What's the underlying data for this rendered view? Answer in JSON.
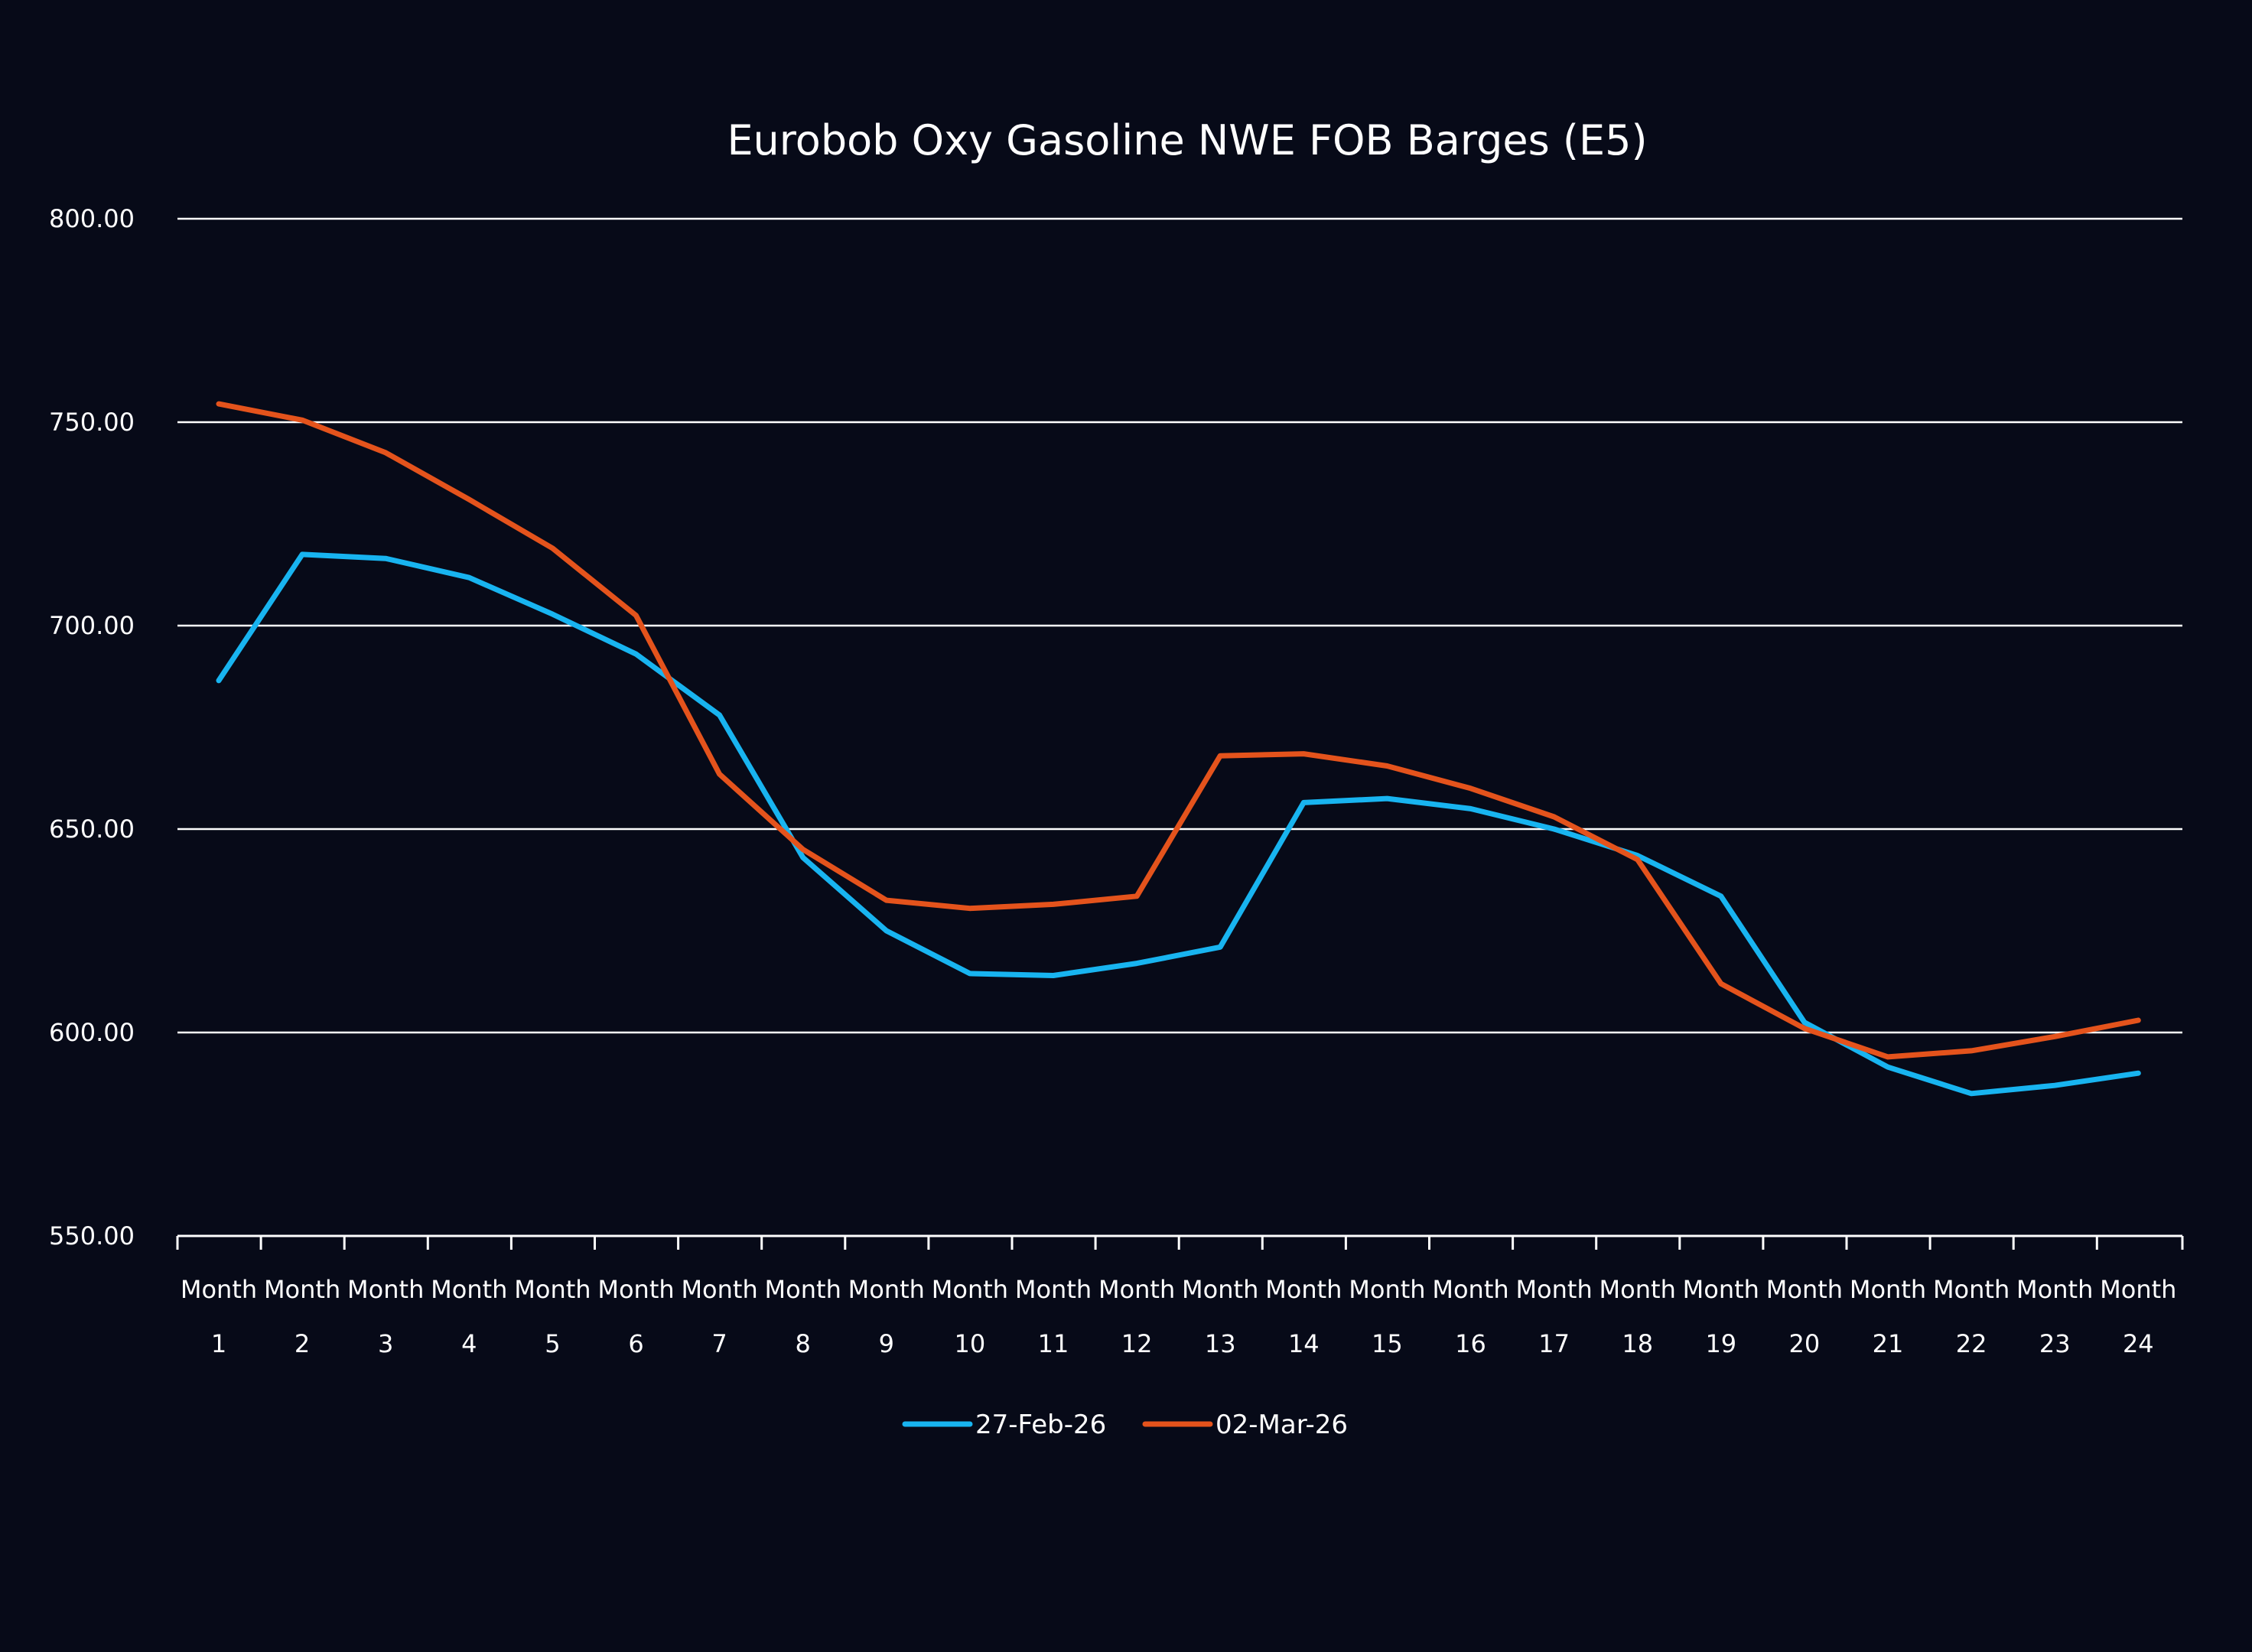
{
  "background": "#070a18",
  "chart_data": {
    "type": "line",
    "title": "Eurobob Oxy Gasoline NWE FOB Barges (E5)",
    "xlabel": "",
    "ylabel": "",
    "ylim": [
      550,
      800
    ],
    "yticks": [
      "800.00",
      "750.00",
      "700.00",
      "650.00",
      "600.00",
      "550.00"
    ],
    "ytick_values": [
      800,
      750,
      700,
      650,
      600,
      550
    ],
    "grid": true,
    "legend_position": "bottom-center",
    "categories": [
      {
        "line1": "Month",
        "line2": "1"
      },
      {
        "line1": "Month",
        "line2": "2"
      },
      {
        "line1": "Month",
        "line2": "3"
      },
      {
        "line1": "Month",
        "line2": "4"
      },
      {
        "line1": "Month",
        "line2": "5"
      },
      {
        "line1": "Month",
        "line2": "6"
      },
      {
        "line1": "Month",
        "line2": "7"
      },
      {
        "line1": "Month",
        "line2": "8"
      },
      {
        "line1": "Month",
        "line2": "9"
      },
      {
        "line1": "Month",
        "line2": "10"
      },
      {
        "line1": "Month",
        "line2": "11"
      },
      {
        "line1": "Month",
        "line2": "12"
      },
      {
        "line1": "Month",
        "line2": "13"
      },
      {
        "line1": "Month",
        "line2": "14"
      },
      {
        "line1": "Month",
        "line2": "15"
      },
      {
        "line1": "Month",
        "line2": "16"
      },
      {
        "line1": "Month",
        "line2": "17"
      },
      {
        "line1": "Month",
        "line2": "18"
      },
      {
        "line1": "Month",
        "line2": "19"
      },
      {
        "line1": "Month",
        "line2": "20"
      },
      {
        "line1": "Month",
        "line2": "21"
      },
      {
        "line1": "Month",
        "line2": "22"
      },
      {
        "line1": "Month",
        "line2": "23"
      },
      {
        "line1": "Month",
        "line2": "24"
      }
    ],
    "series": [
      {
        "name": "27-Feb-26",
        "color": "#18b4f0",
        "values": [
          686.5,
          717.5,
          716.5,
          711.8,
          702.8,
          693.0,
          678.0,
          643.0,
          625.0,
          614.5,
          614.0,
          617.0,
          621.0,
          656.5,
          657.5,
          655.0,
          650.0,
          643.5,
          633.5,
          602.5,
          591.5,
          585.0,
          587.0,
          590.0
        ]
      },
      {
        "name": "02-Mar-26",
        "color": "#e4531c",
        "values": [
          754.5,
          750.5,
          742.5,
          731.0,
          719.0,
          702.5,
          663.5,
          645.0,
          632.5,
          630.5,
          631.5,
          633.5,
          668.0,
          668.5,
          665.5,
          660.0,
          653.0,
          642.5,
          612.0,
          601.0,
          594.0,
          595.5,
          599.0,
          603.0
        ]
      }
    ]
  }
}
